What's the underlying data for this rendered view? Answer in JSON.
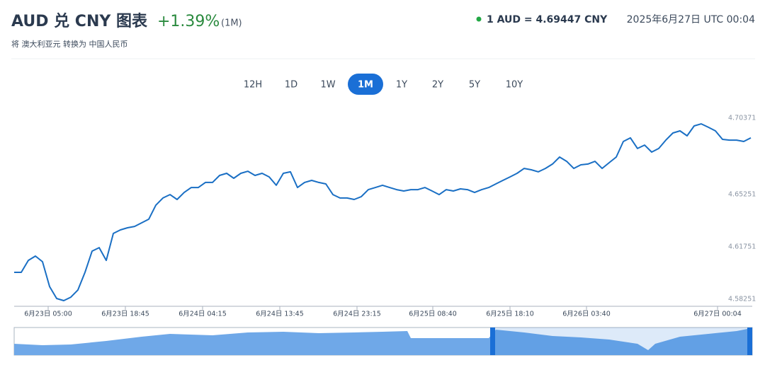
{
  "header": {
    "title": "AUD 兑 CNY 图表",
    "change": "+1.39%",
    "period": "(1M)",
    "subtitle": "将 澳大利亚元 转换为 中国人民币",
    "rate": "1 AUD = 4.69447 CNY",
    "timestamp": "2025年6月27日 UTC 00:04"
  },
  "range_buttons": [
    "12H",
    "1D",
    "1W",
    "1M",
    "1Y",
    "2Y",
    "5Y",
    "10Y"
  ],
  "active_button": 3,
  "chart_data": {
    "type": "line",
    "color": "#1a6fc4",
    "values": [
      4.6006,
      4.6006,
      4.6086,
      4.6115,
      4.6077,
      4.5911,
      4.5831,
      4.5817,
      4.584,
      4.5888,
      4.6006,
      4.6148,
      4.6171,
      4.6086,
      4.6266,
      4.629,
      4.6304,
      4.6313,
      4.6337,
      4.6361,
      4.6455,
      4.6503,
      4.6526,
      4.6493,
      4.654,
      4.6573,
      4.6573,
      4.6607,
      4.6607,
      4.6654,
      4.6668,
      4.6635,
      4.6668,
      4.6682,
      4.6654,
      4.6668,
      4.6644,
      4.6588,
      4.6668,
      4.6678,
      4.6573,
      4.6607,
      4.6621,
      4.6607,
      4.6597,
      4.6526,
      4.6503,
      4.6503,
      4.6493,
      4.6512,
      4.6559,
      4.6573,
      4.6588,
      4.6573,
      4.6559,
      4.655,
      4.6559,
      4.6559,
      4.6573,
      4.655,
      4.6526,
      4.6559,
      4.655,
      4.6564,
      4.6559,
      4.654,
      4.6559,
      4.6573,
      4.6597,
      4.6621,
      4.6644,
      4.6668,
      4.6701,
      4.6692,
      4.6678,
      4.6701,
      4.673,
      4.6777,
      4.6748,
      4.6701,
      4.6725,
      4.673,
      4.6748,
      4.6701,
      4.6739,
      4.6777,
      4.6881,
      4.6905,
      4.6834,
      4.6857,
      4.681,
      4.6834,
      4.689,
      4.6938,
      4.6952,
      4.6919,
      4.6985,
      4.6999,
      4.6976,
      4.6952,
      4.6895,
      4.689,
      4.689,
      4.6881,
      4.6905
    ],
    "xlim": [
      0,
      104
    ],
    "xticks": [
      {
        "value": 4.8,
        "label": "6月23日 05:00"
      },
      {
        "value": 15.7,
        "label": "6月23日 18:45"
      },
      {
        "value": 26.6,
        "label": "6月24日 04:15"
      },
      {
        "value": 37.5,
        "label": "6月24日 13:45"
      },
      {
        "value": 48.4,
        "label": "6月24日 23:15"
      },
      {
        "value": 59.1,
        "label": "6月25日 08:40"
      },
      {
        "value": 70,
        "label": "6月25日 18:10"
      },
      {
        "value": 80.8,
        "label": "6月26日 03:40"
      },
      {
        "value": 99.3,
        "label": "6月27日 00:04"
      }
    ],
    "ylim": [
      4.57837,
      4.70702
    ],
    "yticks": [
      4.58251,
      4.61751,
      4.65251,
      4.70371
    ],
    "grid": false
  }
}
